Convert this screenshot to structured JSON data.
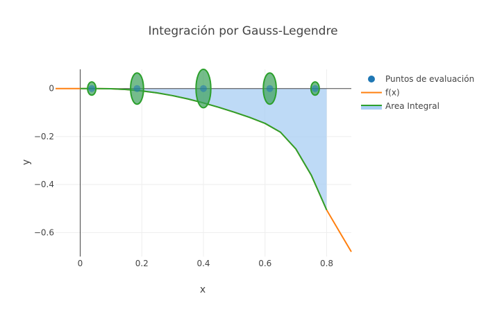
{
  "chart_data": {
    "type": "line",
    "title": "Integración por Gauss-Legendre",
    "xlabel": "x",
    "ylabel": "y",
    "xlim": [
      -0.08,
      0.88
    ],
    "ylim": [
      -0.7,
      0.08
    ],
    "x_ticks": [
      0,
      0.2,
      0.4,
      0.6,
      0.8
    ],
    "x_tick_labels": [
      "0",
      "0.2",
      "0.4",
      "0.6",
      "0.8"
    ],
    "y_ticks": [
      0,
      -0.2,
      -0.4,
      -0.6
    ],
    "y_tick_labels": [
      "0",
      "−0.2",
      "−0.4",
      "−0.6"
    ],
    "grid": true,
    "legend_position": "top-right",
    "integral_interval": [
      0,
      0.8
    ],
    "series": [
      {
        "name": "Puntos de evaluación",
        "kind": "scatter",
        "color": "#1f77b4",
        "x": [
          0.0375,
          0.1846,
          0.4,
          0.6154,
          0.7625
        ],
        "y": [
          0,
          0,
          0,
          0,
          0
        ],
        "weight_ellipse_heights": [
          0.055,
          0.13,
          0.16,
          0.13,
          0.055
        ]
      },
      {
        "name": "f(x)",
        "kind": "line",
        "color": "#ff7f0e",
        "x": [
          -0.08,
          0,
          0.05,
          0.1,
          0.15,
          0.2,
          0.25,
          0.3,
          0.35,
          0.4,
          0.45,
          0.5,
          0.55,
          0.6,
          0.65,
          0.7,
          0.75,
          0.8,
          0.85,
          0.88
        ],
        "y": [
          0,
          0,
          -0.0002,
          -0.001,
          -0.0041,
          -0.0098,
          -0.0183,
          -0.0296,
          -0.0436,
          -0.06,
          -0.0784,
          -0.0985,
          -0.1203,
          -0.1452,
          -0.1818,
          -0.2518,
          -0.3608,
          -0.506,
          -0.615,
          -0.68
        ]
      },
      {
        "name": "Area Integral",
        "kind": "area",
        "color": "#2ca02c",
        "fill_color": "#a8cef3"
      }
    ]
  }
}
